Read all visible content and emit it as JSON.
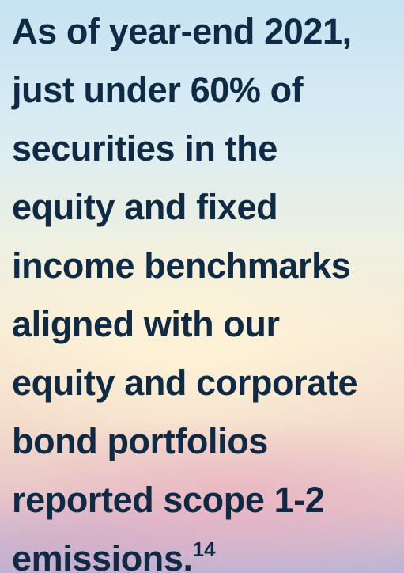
{
  "text": {
    "lines": [
      "As of year-end 2021,",
      "just under 60% of",
      "securities in the",
      "equity and fixed",
      "income benchmarks",
      "aligned with our",
      "equity and corporate",
      "bond portfolios",
      "reported scope 1-2",
      "emissions."
    ],
    "footnote": "14"
  }
}
